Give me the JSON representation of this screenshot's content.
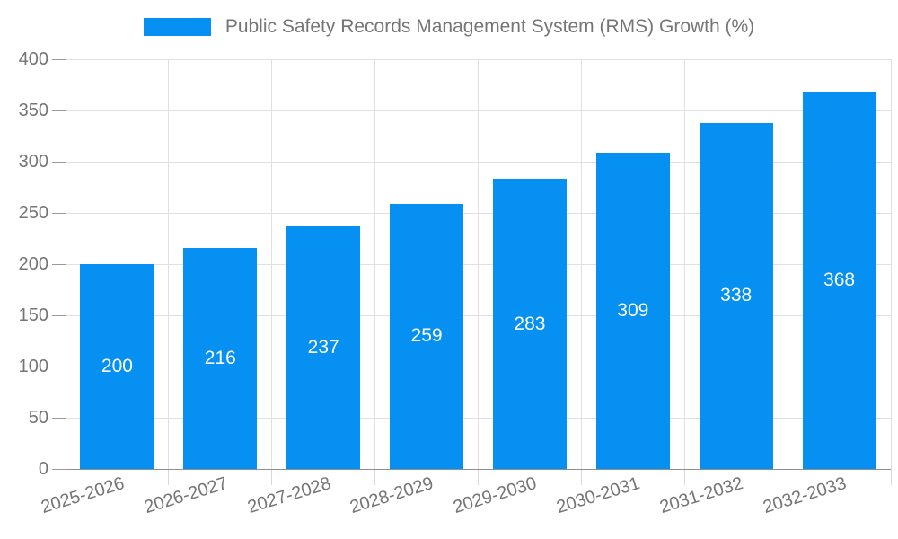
{
  "chart_data": {
    "type": "bar",
    "title": "",
    "legend": {
      "position": "top",
      "entries": [
        {
          "label": "Public Safety Records Management System (RMS) Growth (%)",
          "color": "#0590f2"
        }
      ]
    },
    "categories": [
      "2025-2026",
      "2026-2027",
      "2027-2028",
      "2028-2029",
      "2029-2030",
      "2030-2031",
      "2031-2032",
      "2032-2033"
    ],
    "series": [
      {
        "name": "Public Safety Records Management System (RMS) Growth (%)",
        "values": [
          200,
          216,
          237,
          259,
          283,
          309,
          338,
          368
        ],
        "color": "#0590f2",
        "data_labels": true,
        "data_label_color": "#ffffff"
      }
    ],
    "xlabel": "",
    "ylabel": "",
    "ylim": [
      0,
      400
    ],
    "yticks": [
      0,
      50,
      100,
      150,
      200,
      250,
      300,
      350,
      400
    ],
    "grid": true,
    "x_tick_rotation_deg": -17
  },
  "colors": {
    "background": "#ffffff",
    "bar": "#0590f2",
    "grid": "#e0e0e0",
    "axis": "#8f8f8f",
    "tick_text": "#757575",
    "bar_label_text": "#ffffff"
  }
}
